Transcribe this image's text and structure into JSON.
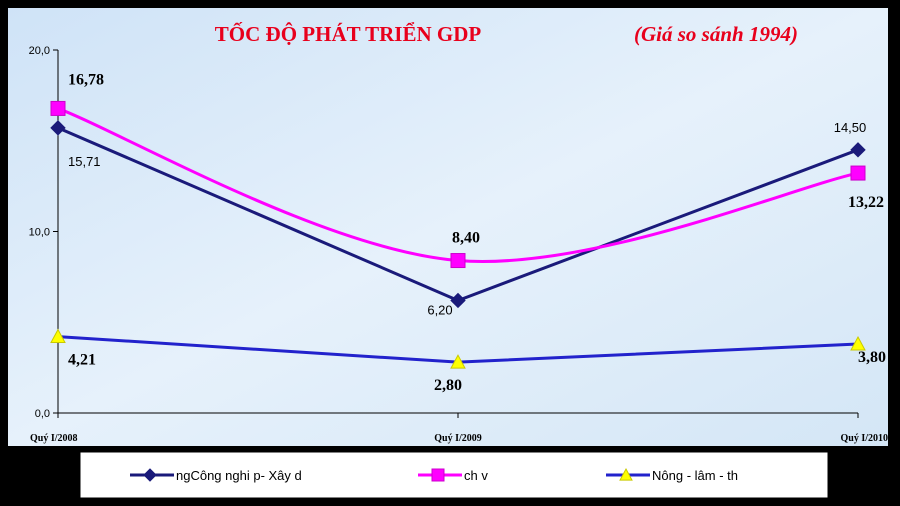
{
  "chart_data": {
    "type": "line",
    "title": "TỐC ĐỘ PHÁT TRIỂN GDP",
    "subtitle": "(Giá so sánh 1994)",
    "categories": [
      "Quý I/2008",
      "Quý I/2009",
      "Quý I/2010"
    ],
    "ylim": [
      0,
      20
    ],
    "yticks": [
      "0,0",
      "10,0",
      "20,0"
    ],
    "grid": false,
    "legend_position": "bottom",
    "series": [
      {
        "name": "ngCông nghi p- Xây d",
        "color": "#1a1a7a",
        "marker": "diamond",
        "values": [
          15.71,
          6.2,
          14.5
        ],
        "labels": [
          "15,71",
          "6,20",
          "14,50"
        ]
      },
      {
        "name": "ch v",
        "color": "#ff00ff",
        "marker": "square",
        "values": [
          16.78,
          8.4,
          13.22
        ],
        "labels": [
          "16,78",
          "8,40",
          "13,22"
        ]
      },
      {
        "name": "Nông - lâm - th",
        "color": "#2222cc",
        "marker": "triangle",
        "marker_color": "#ffff00",
        "values": [
          4.21,
          2.8,
          3.8
        ],
        "labels": [
          "4,21",
          "2,80",
          "3,80"
        ]
      }
    ]
  }
}
